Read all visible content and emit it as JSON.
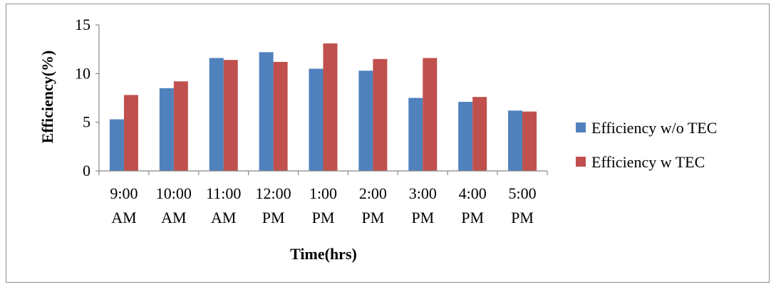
{
  "chart_data": {
    "type": "bar",
    "xlabel": "Time(hrs)",
    "ylabel": "Efficiency(%)",
    "ylim": [
      0,
      15
    ],
    "yticks": [
      "0",
      "5",
      "10",
      "15"
    ],
    "categories": [
      [
        "9:00",
        "AM"
      ],
      [
        "10:00",
        "AM"
      ],
      [
        "11:00",
        "AM"
      ],
      [
        "12:00",
        "PM"
      ],
      [
        "1:00",
        "PM"
      ],
      [
        "2:00",
        "PM"
      ],
      [
        "3:00",
        "PM"
      ],
      [
        "4:00",
        "PM"
      ],
      [
        "5:00",
        "PM"
      ]
    ],
    "series": [
      {
        "name": "Efficiency w/o TEC",
        "color": "#4f81bd",
        "values": [
          5.3,
          8.5,
          11.6,
          12.2,
          10.5,
          10.3,
          7.5,
          7.1,
          6.2
        ]
      },
      {
        "name": "Efficiency w TEC",
        "color": "#c0504d",
        "values": [
          7.8,
          9.2,
          11.4,
          11.2,
          13.1,
          11.5,
          11.6,
          7.6,
          6.1
        ]
      }
    ],
    "grid": false,
    "legend_position": "right"
  }
}
